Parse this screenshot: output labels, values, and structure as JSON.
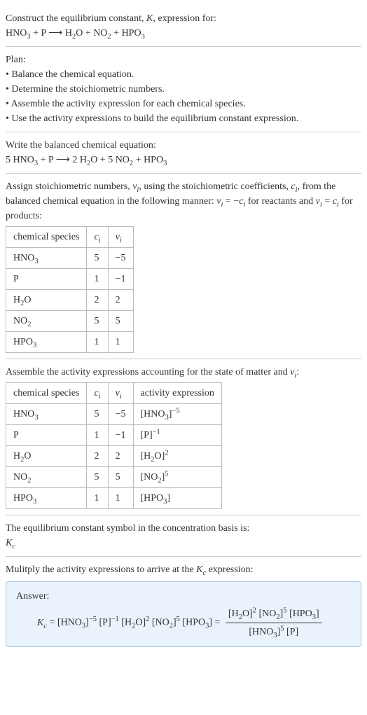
{
  "intro": {
    "line1": "Construct the equilibrium constant, K, expression for:",
    "equation": "HNO₃ + P ⟶ H₂O + NO₂ + HPO₃"
  },
  "plan": {
    "heading": "Plan:",
    "items": [
      "• Balance the chemical equation.",
      "• Determine the stoichiometric numbers.",
      "• Assemble the activity expression for each chemical species.",
      "• Use the activity expressions to build the equilibrium constant expression."
    ]
  },
  "balanced": {
    "heading": "Write the balanced chemical equation:",
    "equation": "5 HNO₃ + P ⟶ 2 H₂O + 5 NO₂ + HPO₃"
  },
  "stoich": {
    "text_pre": "Assign stoichiometric numbers, νᵢ, using the stoichiometric coefficients, cᵢ, from the balanced chemical equation in the following manner: νᵢ = −cᵢ for reactants and νᵢ = cᵢ for products:",
    "table": {
      "headers": [
        "chemical species",
        "cᵢ",
        "νᵢ"
      ],
      "rows": [
        [
          "HNO₃",
          "5",
          "−5"
        ],
        [
          "P",
          "1",
          "−1"
        ],
        [
          "H₂O",
          "2",
          "2"
        ],
        [
          "NO₂",
          "5",
          "5"
        ],
        [
          "HPO₃",
          "1",
          "1"
        ]
      ]
    }
  },
  "activity": {
    "heading": "Assemble the activity expressions accounting for the state of matter and νᵢ:",
    "table": {
      "headers": [
        "chemical species",
        "cᵢ",
        "νᵢ",
        "activity expression"
      ],
      "rows": [
        {
          "sp": "HNO₃",
          "c": "5",
          "v": "−5",
          "act_base": "[HNO₃]",
          "act_exp": "−5"
        },
        {
          "sp": "P",
          "c": "1",
          "v": "−1",
          "act_base": "[P]",
          "act_exp": "−1"
        },
        {
          "sp": "H₂O",
          "c": "2",
          "v": "2",
          "act_base": "[H₂O]",
          "act_exp": "2"
        },
        {
          "sp": "NO₂",
          "c": "5",
          "v": "5",
          "act_base": "[NO₂]",
          "act_exp": "5"
        },
        {
          "sp": "HPO₃",
          "c": "1",
          "v": "1",
          "act_base": "[HPO₃]",
          "act_exp": ""
        }
      ]
    }
  },
  "symbol": {
    "line1": "The equilibrium constant symbol in the concentration basis is:",
    "line2": "K𝒸"
  },
  "final": {
    "heading": "Mulitply the activity expressions to arrive at the K𝒸 expression:",
    "answer_label": "Answer:",
    "lhs": "K𝒸 = [HNO₃]⁻⁵ [P]⁻¹ [H₂O]² [NO₂]⁵ [HPO₃] = ",
    "num": "[H₂O]² [NO₂]⁵ [HPO₃]",
    "den": "[HNO₃]⁵ [P]"
  }
}
